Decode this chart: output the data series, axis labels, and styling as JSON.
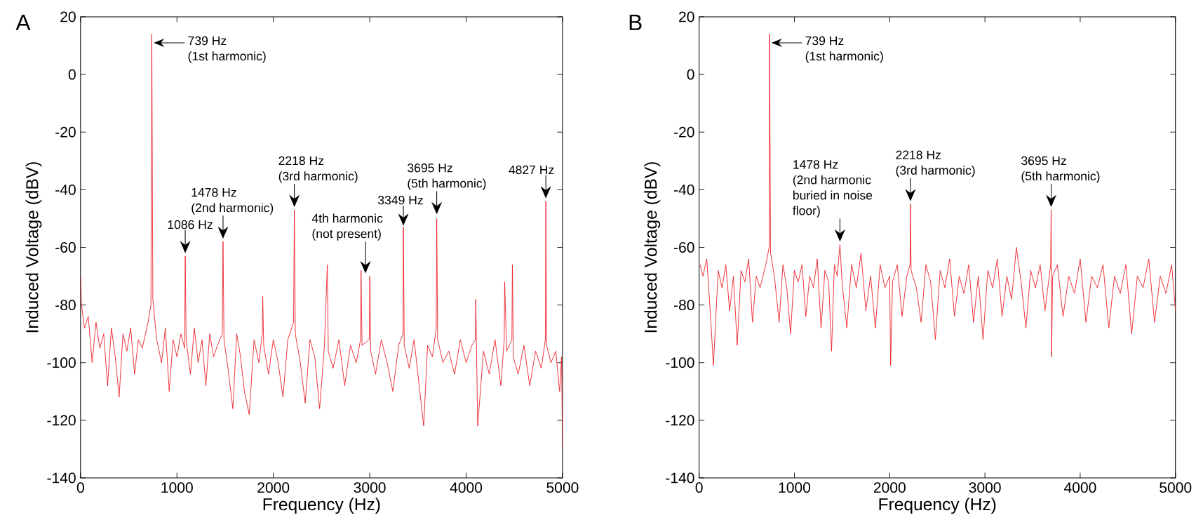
{
  "chart_data": [
    {
      "type": "line",
      "title": "A",
      "xlabel": "Frequency (Hz)",
      "ylabel": "Induced Voltage (dBV)",
      "color": "#ec1c24",
      "xlim": [
        0,
        5000
      ],
      "ylim": [
        -140,
        20
      ],
      "xticks": [
        0,
        1000,
        2000,
        3000,
        4000,
        5000
      ],
      "yticks": [
        -140,
        -120,
        -100,
        -80,
        -60,
        -40,
        -20,
        0,
        20
      ],
      "x": [
        0,
        10,
        40,
        80,
        120,
        160,
        200,
        240,
        280,
        320,
        360,
        400,
        440,
        480,
        520,
        560,
        600,
        640,
        700,
        730,
        739,
        750,
        790,
        840,
        880,
        920,
        960,
        1000,
        1040,
        1080,
        1086,
        1095,
        1140,
        1180,
        1220,
        1260,
        1300,
        1340,
        1380,
        1420,
        1470,
        1478,
        1488,
        1530,
        1580,
        1620,
        1660,
        1700,
        1750,
        1800,
        1850,
        1885,
        1890,
        1900,
        1950,
        2000,
        2050,
        2100,
        2150,
        2210,
        2218,
        2228,
        2280,
        2330,
        2380,
        2430,
        2480,
        2530,
        2560,
        2570,
        2620,
        2680,
        2740,
        2800,
        2860,
        2905,
        2910,
        2920,
        2995,
        3000,
        3010,
        3060,
        3120,
        3180,
        3240,
        3300,
        3345,
        3349,
        3358,
        3410,
        3460,
        3520,
        3560,
        3600,
        3650,
        3690,
        3695,
        3705,
        3760,
        3820,
        3880,
        3940,
        4000,
        4060,
        4095,
        4100,
        4120,
        4180,
        4240,
        4300,
        4360,
        4395,
        4400,
        4420,
        4475,
        4480,
        4490,
        4540,
        4600,
        4660,
        4720,
        4780,
        4822,
        4827,
        4835,
        4880,
        4930,
        4970,
        4990,
        5000
      ],
      "values": [
        -70,
        -80,
        -88,
        -84,
        -100,
        -86,
        -95,
        -90,
        -108,
        -88,
        -98,
        -112,
        -90,
        -96,
        -88,
        -104,
        -92,
        -95,
        -86,
        -80,
        14,
        -78,
        -92,
        -100,
        -88,
        -110,
        -92,
        -98,
        -90,
        -95,
        -63,
        -92,
        -104,
        -88,
        -100,
        -92,
        -108,
        -90,
        -98,
        -94,
        -90,
        -58,
        -92,
        -102,
        -116,
        -90,
        -98,
        -110,
        -118,
        -92,
        -100,
        -90,
        -77,
        -94,
        -104,
        -92,
        -100,
        -112,
        -92,
        -86,
        -47,
        -90,
        -100,
        -114,
        -92,
        -98,
        -116,
        -94,
        -66,
        -96,
        -102,
        -92,
        -108,
        -94,
        -100,
        -92,
        -68,
        -94,
        -92,
        -70,
        -96,
        -104,
        -92,
        -100,
        -110,
        -94,
        -90,
        -53,
        -94,
        -102,
        -92,
        -110,
        -122,
        -94,
        -98,
        -88,
        -50,
        -92,
        -100,
        -96,
        -104,
        -92,
        -100,
        -94,
        -92,
        -78,
        -122,
        -96,
        -104,
        -92,
        -108,
        -92,
        -72,
        -96,
        -92,
        -66,
        -98,
        -104,
        -94,
        -108,
        -96,
        -102,
        -92,
        -44,
        -94,
        -100,
        -96,
        -110,
        -98,
        -130
      ],
      "annotations": [
        {
          "text": "739 Hz",
          "x": 739,
          "y": 14
        },
        "(1st harmonic)",
        {
          "text": "1086 Hz",
          "x": 1086,
          "y": -63
        },
        "1478 Hz",
        {
          "text": "(2nd harmonic)",
          "x": 1478,
          "y": -58
        },
        "2218 Hz",
        {
          "text": "(3rd harmonic)",
          "x": 2218,
          "y": -47
        },
        "4th harmonic",
        "(not present)",
        {
          "text": "3349 Hz",
          "x": 3349,
          "y": -53
        },
        "3695 Hz",
        {
          "text": "(5th harmonic)",
          "x": 3695,
          "y": -50
        },
        {
          "text": "4827 Hz",
          "x": 4827,
          "y": -44
        }
      ]
    },
    {
      "type": "line",
      "title": "B",
      "xlabel": "Frequency (Hz)",
      "ylabel": "Induced Voltage (dBV)",
      "color": "#ec1c24",
      "xlim": [
        0,
        5000
      ],
      "ylim": [
        -140,
        20
      ],
      "xticks": [
        0,
        1000,
        2000,
        3000,
        4000,
        5000
      ],
      "yticks": [
        -140,
        -120,
        -100,
        -80,
        -60,
        -40,
        -20,
        0,
        20
      ],
      "x": [
        10,
        40,
        80,
        120,
        150,
        200,
        240,
        280,
        320,
        360,
        400,
        440,
        480,
        520,
        560,
        600,
        640,
        700,
        735,
        739,
        750,
        790,
        840,
        880,
        920,
        960,
        1000,
        1040,
        1080,
        1120,
        1160,
        1200,
        1240,
        1280,
        1320,
        1360,
        1390,
        1420,
        1450,
        1478,
        1500,
        1550,
        1600,
        1650,
        1700,
        1750,
        1800,
        1850,
        1900,
        1950,
        2000,
        2010,
        2030,
        2080,
        2130,
        2180,
        2214,
        2218,
        2225,
        2280,
        2330,
        2380,
        2430,
        2480,
        2530,
        2580,
        2630,
        2680,
        2730,
        2780,
        2830,
        2880,
        2930,
        2980,
        3030,
        3080,
        3130,
        3180,
        3230,
        3280,
        3330,
        3380,
        3430,
        3480,
        3530,
        3580,
        3630,
        3690,
        3695,
        3700,
        3710,
        3760,
        3820,
        3880,
        3940,
        4000,
        4060,
        4120,
        4180,
        4240,
        4300,
        4360,
        4420,
        4480,
        4540,
        4600,
        4660,
        4720,
        4780,
        4840,
        4900,
        4960,
        5000
      ],
      "values": [
        -66,
        -70,
        -64,
        -84,
        -101,
        -68,
        -74,
        -66,
        -82,
        -70,
        -94,
        -68,
        -72,
        -64,
        -86,
        -70,
        -74,
        -66,
        -60,
        14,
        -62,
        -70,
        -86,
        -66,
        -74,
        -90,
        -68,
        -72,
        -66,
        -84,
        -70,
        -74,
        -64,
        -88,
        -68,
        -72,
        -96,
        -66,
        -70,
        -59,
        -72,
        -88,
        -66,
        -74,
        -62,
        -82,
        -70,
        -88,
        -66,
        -74,
        -70,
        -101,
        -72,
        -66,
        -84,
        -70,
        -66,
        -45,
        -68,
        -74,
        -86,
        -66,
        -72,
        -92,
        -68,
        -74,
        -64,
        -84,
        -70,
        -76,
        -66,
        -86,
        -70,
        -92,
        -68,
        -74,
        -64,
        -84,
        -70,
        -78,
        -60,
        -72,
        -88,
        -68,
        -74,
        -66,
        -82,
        -66,
        -47,
        -98,
        -70,
        -66,
        -84,
        -70,
        -76,
        -64,
        -86,
        -70,
        -74,
        -66,
        -88,
        -70,
        -76,
        -66,
        -90,
        -70,
        -74,
        -64,
        -86,
        -70,
        -76,
        -66,
        -82
      ],
      "annotations": [
        {
          "text": "739 Hz",
          "x": 739,
          "y": 14
        },
        "(1st harmonic)",
        "1478 Hz",
        "(2nd harmonic",
        "buried in noise",
        {
          "text": "floor)",
          "x": 1478,
          "y": -59
        },
        "2218 Hz",
        {
          "text": "(3rd harmonic)",
          "x": 2218,
          "y": -45
        },
        "3695 Hz",
        {
          "text": "(5th harmonic)",
          "x": 3695,
          "y": -47
        }
      ]
    }
  ]
}
